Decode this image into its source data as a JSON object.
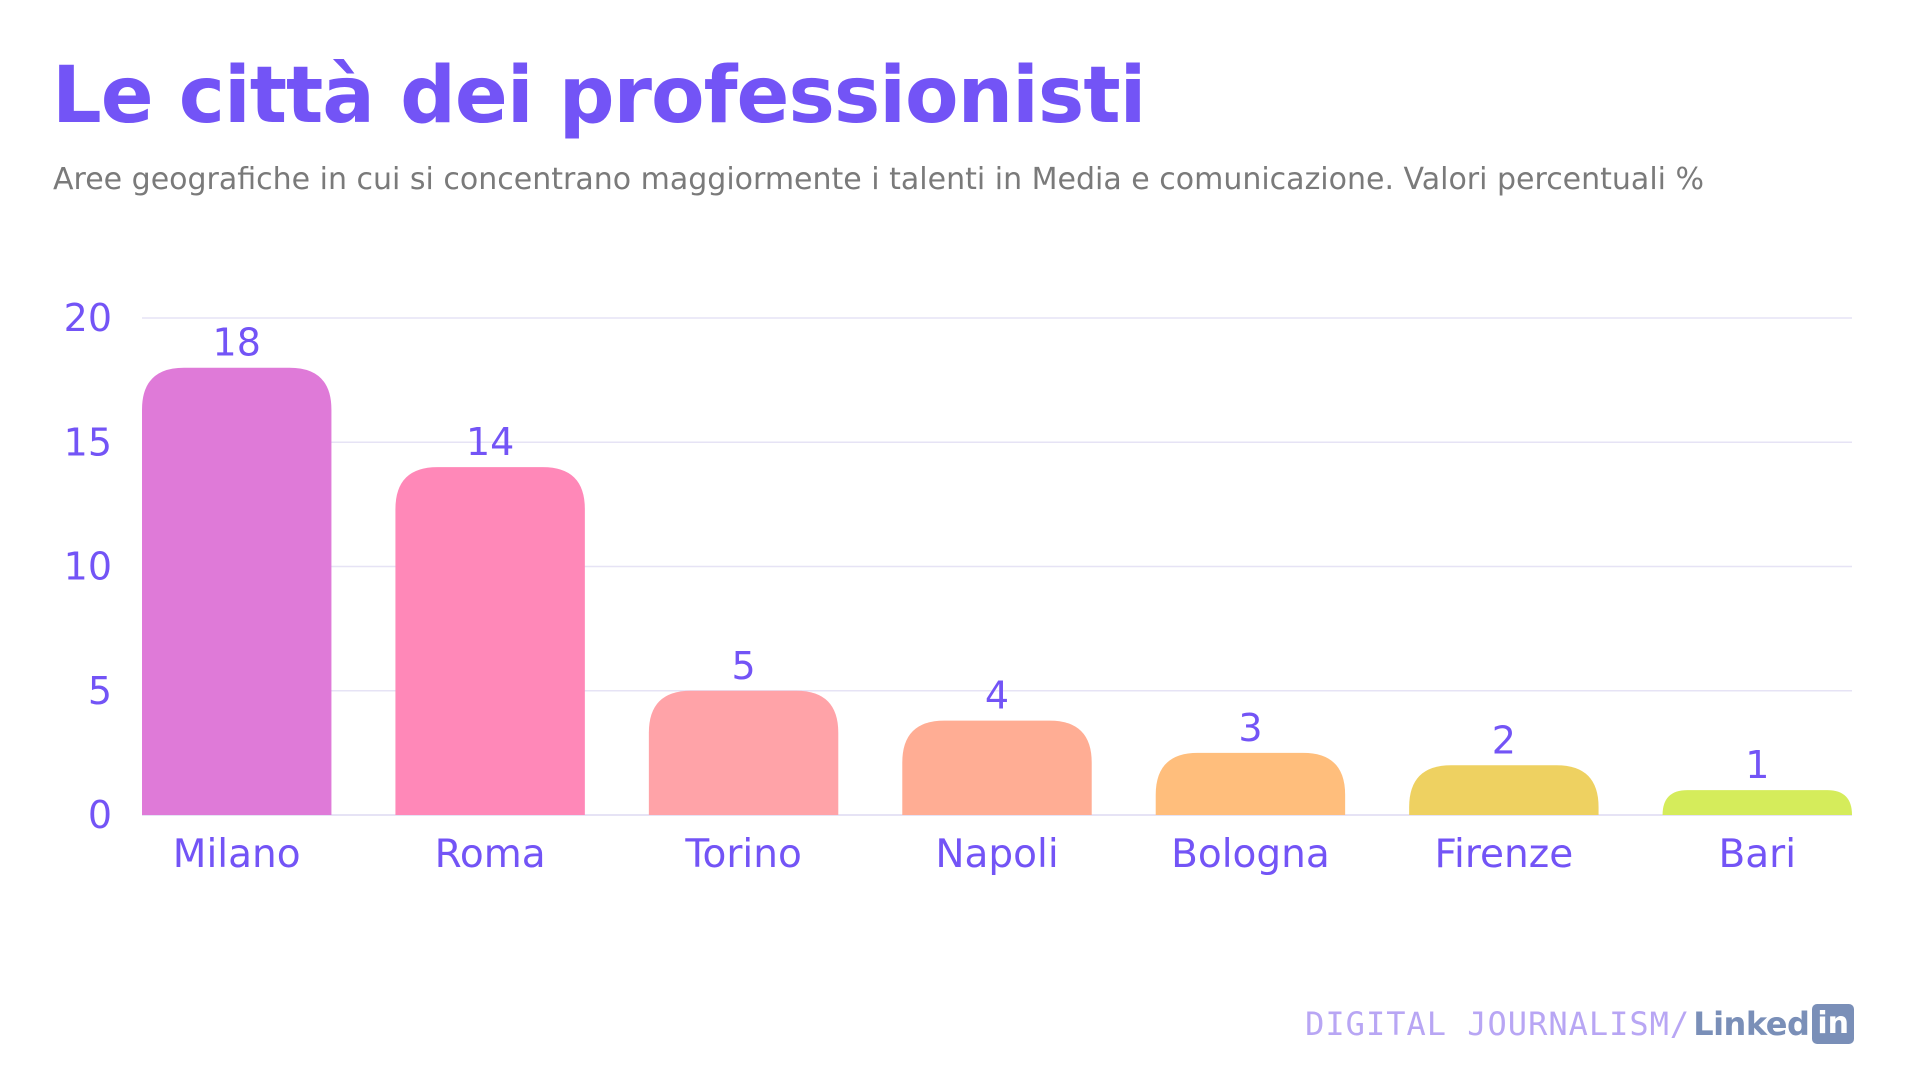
{
  "header": {
    "title": "Le città dei professionisti",
    "subtitle": "Aree geografiche in cui si concentrano maggiormente i talenti in Media e comunicazione. Valori percentuali %"
  },
  "branding": {
    "digital_journalism": "DIGITAL JOURNALISM",
    "separator": "/",
    "linkedin_text": "Linked",
    "linkedin_badge": "in"
  },
  "colors": {
    "accent": "#7354f6",
    "subtitle": "#7a7a7a",
    "gridline": "#e6e3f5",
    "bars": [
      "#df7ad8",
      "#ff88b8",
      "#ffa3a8",
      "#ffad94",
      "#ffbe7c",
      "#eed161",
      "#d5ec5b"
    ]
  },
  "chart_data": {
    "type": "bar",
    "categories": [
      "Milano",
      "Roma",
      "Torino",
      "Napoli",
      "Bologna",
      "Firenze",
      "Bari"
    ],
    "values": [
      18,
      14,
      5,
      3.8,
      2.5,
      2,
      1
    ],
    "data_labels": [
      "18",
      "14",
      "5",
      "4",
      "3",
      "2",
      "1"
    ],
    "ylim": [
      0,
      20
    ],
    "yticks": [
      0,
      5,
      10,
      15,
      20
    ],
    "grid": true,
    "legend": "none"
  }
}
